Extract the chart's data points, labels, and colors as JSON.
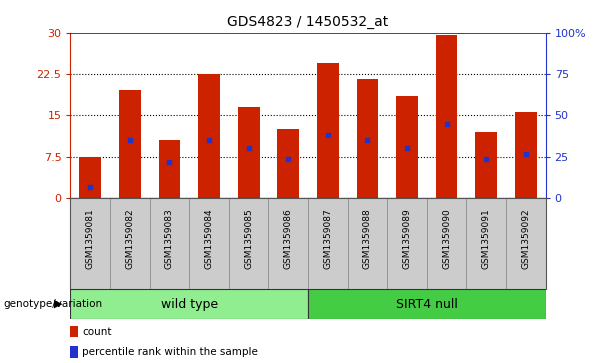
{
  "title": "GDS4823 / 1450532_at",
  "samples": [
    "GSM1359081",
    "GSM1359082",
    "GSM1359083",
    "GSM1359084",
    "GSM1359085",
    "GSM1359086",
    "GSM1359087",
    "GSM1359088",
    "GSM1359089",
    "GSM1359090",
    "GSM1359091",
    "GSM1359092"
  ],
  "bar_heights": [
    7.5,
    19.5,
    10.5,
    22.5,
    16.5,
    12.5,
    24.5,
    21.5,
    18.5,
    29.5,
    12.0,
    15.5
  ],
  "percentile_values": [
    2.0,
    10.5,
    6.5,
    10.5,
    9.0,
    7.0,
    11.5,
    10.5,
    9.0,
    13.5,
    7.0,
    8.0
  ],
  "bar_color": "#cc2200",
  "percentile_color": "#2233cc",
  "ylim_left": [
    0,
    30
  ],
  "ylim_right": [
    0,
    100
  ],
  "yticks_left": [
    0,
    7.5,
    15,
    22.5,
    30
  ],
  "yticks_right": [
    0,
    25,
    50,
    75,
    100
  ],
  "ytick_labels_left": [
    "0",
    "7.5",
    "15",
    "22.5",
    "30"
  ],
  "ytick_labels_right": [
    "0",
    "25",
    "50",
    "75",
    "100%"
  ],
  "groups": [
    {
      "label": "wild type",
      "start": 0,
      "end": 6,
      "color": "#90ee90"
    },
    {
      "label": "SIRT4 null",
      "start": 6,
      "end": 12,
      "color": "#44cc44"
    }
  ],
  "group_row_label": "genotype/variation",
  "legend_items": [
    {
      "label": "count",
      "color": "#cc2200"
    },
    {
      "label": "percentile rank within the sample",
      "color": "#2233cc"
    }
  ],
  "bar_width": 0.55,
  "background_color": "#ffffff",
  "plot_bg_color": "#ffffff",
  "tick_color_left": "#cc2200",
  "tick_color_right": "#2233cc",
  "xlabel_rotation": -90,
  "grid_color": "#000000",
  "label_area_bg": "#cccccc"
}
